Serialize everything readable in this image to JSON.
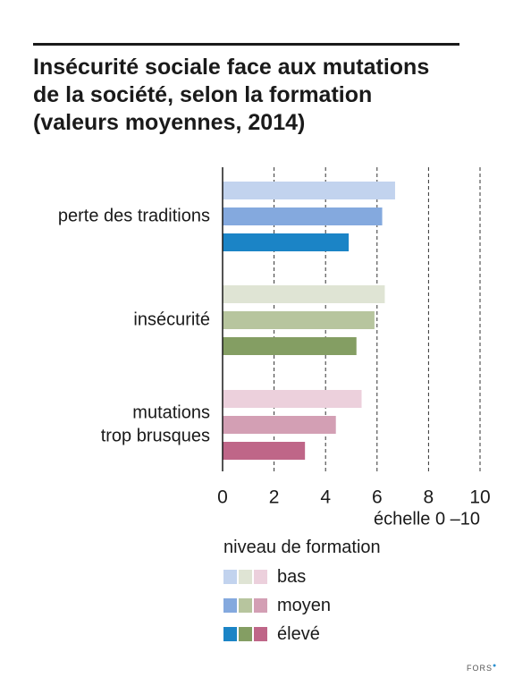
{
  "chart_data": {
    "type": "bar",
    "orientation": "horizontal",
    "title_lines": [
      "Insécurité sociale face aux mutations",
      "de la société, selon la formation",
      "(valeurs moyennes, 2014)"
    ],
    "categories": [
      [
        "perte des traditions"
      ],
      [
        "insécurité"
      ],
      [
        "mutations",
        "trop brusques"
      ]
    ],
    "series": [
      {
        "name": "bas",
        "values": [
          6.7,
          6.3,
          5.4
        ],
        "colors": [
          "#c2d3ee",
          "#dfe4d4",
          "#ecd0dc"
        ]
      },
      {
        "name": "moyen",
        "values": [
          6.2,
          5.9,
          4.4
        ],
        "colors": [
          "#84a9de",
          "#b7c59e",
          "#d39fb4"
        ]
      },
      {
        "name": "élevé",
        "values": [
          4.9,
          5.2,
          3.2
        ],
        "colors": [
          "#1b84c6",
          "#849e63",
          "#bf6688"
        ]
      }
    ],
    "x_ticks": [
      0,
      2,
      4,
      6,
      8,
      10
    ],
    "xlim": [
      0,
      10
    ],
    "xlabel": "échelle 0 –10",
    "grid": "vertical dashed",
    "legend": {
      "title": "niveau de formation",
      "placement": "bottom",
      "items": [
        "bas",
        "moyen",
        "élevé"
      ]
    }
  },
  "credit": {
    "text": "FORS"
  }
}
